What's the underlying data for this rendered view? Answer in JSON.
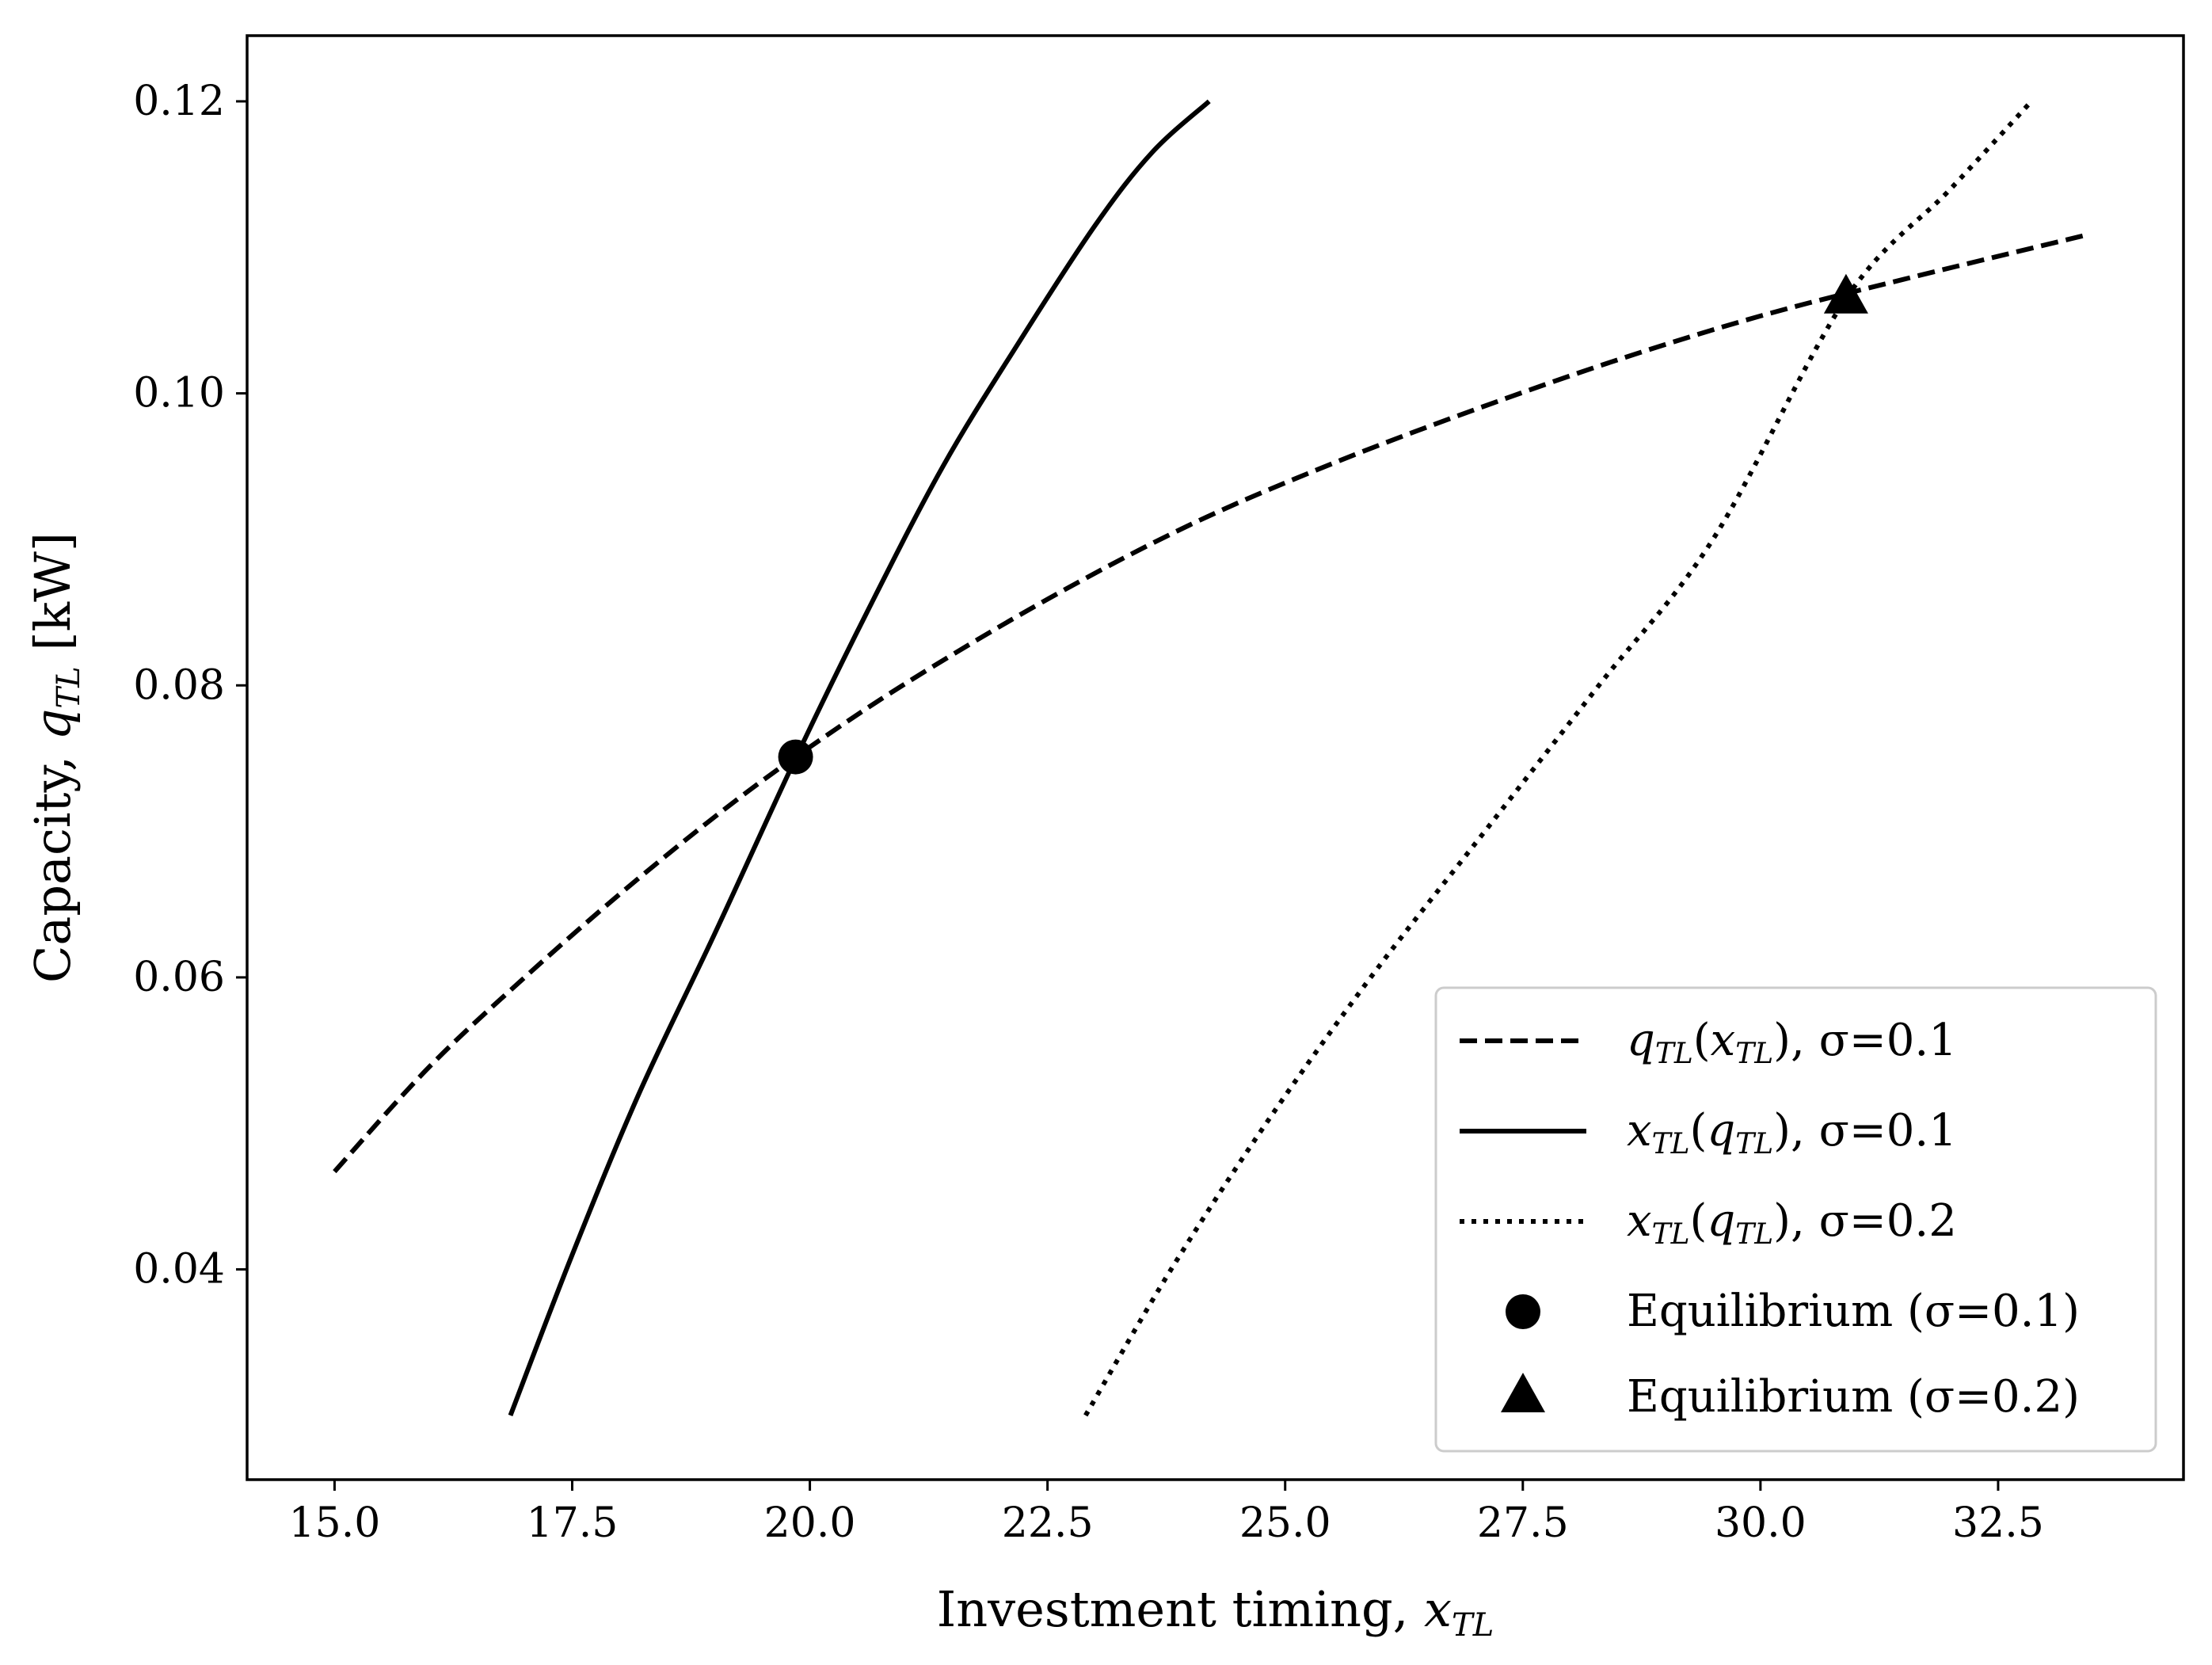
{
  "chart_data": {
    "type": "line",
    "title": "",
    "xlabel": {
      "prefix": "Investment timing, ",
      "var": "x",
      "sub": "TL"
    },
    "ylabel": {
      "prefix": "Capacity, ",
      "var": "q",
      "sub": "TL",
      "unit": " [kW]"
    },
    "xlim": [
      14.08,
      34.45
    ],
    "ylim": [
      0.0256,
      0.1245
    ],
    "xticks": [
      15.0,
      17.5,
      20.0,
      22.5,
      25.0,
      27.5,
      30.0,
      32.5
    ],
    "xtick_labels": [
      "15.0",
      "17.5",
      "20.0",
      "22.5",
      "25.0",
      "27.5",
      "30.0",
      "32.5"
    ],
    "yticks": [
      0.04,
      0.06,
      0.08,
      0.1,
      0.12
    ],
    "ytick_labels": [
      "0.04",
      "0.06",
      "0.08",
      "0.10",
      "0.12"
    ],
    "grid": false,
    "legend_position": "lower-right",
    "series": [
      {
        "name": "q(x), σ=0.1",
        "legend": {
          "v1": "q",
          "s1": "TL",
          "v2": "x",
          "s2": "TL",
          "sigma": "σ=0.1"
        },
        "style": "dashed",
        "x": [
          15.0,
          16.0,
          17.0,
          18.0,
          19.0,
          19.85,
          21.0,
          22.5,
          24.0,
          25.5,
          27.0,
          28.5,
          30.0,
          31.5,
          33.4
        ],
        "y": [
          0.0467,
          0.0539,
          0.06,
          0.0657,
          0.071,
          0.0751,
          0.0801,
          0.0859,
          0.091,
          0.0952,
          0.0989,
          0.1023,
          0.1053,
          0.1078,
          0.1108
        ]
      },
      {
        "name": "x(q), σ=0.1",
        "legend": {
          "v1": "x",
          "s1": "TL",
          "v2": "q",
          "s2": "TL",
          "sigma": "σ=0.1"
        },
        "style": "solid",
        "x": [
          16.85,
          17.5,
          18.2,
          19.0,
          19.85,
          20.6,
          21.4,
          22.2,
          23.0,
          23.6,
          24.2
        ],
        "y": [
          0.03,
          0.041,
          0.052,
          0.063,
          0.075,
          0.085,
          0.095,
          0.1035,
          0.1115,
          0.1165,
          0.12
        ]
      },
      {
        "name": "x(q), σ=0.2",
        "legend": {
          "v1": "x",
          "s1": "TL",
          "v2": "q",
          "s2": "TL",
          "sigma": "σ=0.2"
        },
        "style": "dotted",
        "x": [
          22.9,
          23.8,
          24.8,
          25.9,
          27.1,
          28.3,
          29.5,
          30.9,
          32.0,
          32.85
        ],
        "y": [
          0.03,
          0.04,
          0.05,
          0.06,
          0.07,
          0.08,
          0.09,
          0.1065,
          0.114,
          0.12
        ]
      }
    ],
    "markers": [
      {
        "name": "Equilibrium (σ=0.1)",
        "label": "Equilibrium (σ=0.1)",
        "shape": "circle",
        "x": 19.85,
        "y": 0.0751
      },
      {
        "name": "Equilibrium (σ=0.2)",
        "label": "Equilibrium (σ=0.2)",
        "shape": "triangle",
        "x": 30.9,
        "y": 0.1065
      }
    ]
  }
}
